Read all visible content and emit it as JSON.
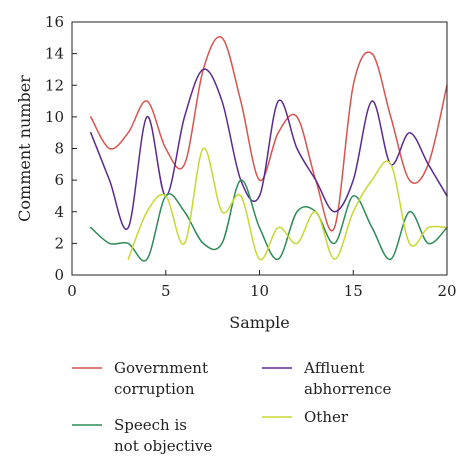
{
  "chart_data": {
    "type": "line",
    "title": "",
    "xlabel": "Sample",
    "ylabel": "Comment number",
    "xlim": [
      0,
      20
    ],
    "ylim": [
      0,
      16
    ],
    "x_ticks": [
      0,
      5,
      10,
      15,
      20
    ],
    "y_ticks": [
      0,
      2,
      4,
      6,
      8,
      10,
      12,
      14,
      16
    ],
    "grid": false,
    "legend_position": "bottom",
    "series": [
      {
        "name": "Government corruption",
        "color": "#d9534f",
        "x": [
          1,
          2,
          3,
          4,
          5,
          6,
          7,
          8,
          9,
          10,
          11,
          12,
          13,
          14,
          15,
          16,
          17,
          18,
          19,
          20
        ],
        "values": [
          10,
          8,
          9,
          11,
          8,
          7,
          13,
          15,
          11,
          6,
          9,
          10,
          6,
          3,
          12,
          14,
          10,
          6,
          7,
          12
        ]
      },
      {
        "name": "Affluent abhorrence",
        "color": "#5b2a8e",
        "x": [
          1,
          2,
          3,
          4,
          5,
          6,
          7,
          8,
          9,
          10,
          11,
          12,
          13,
          14,
          15,
          16,
          17,
          18,
          19,
          20
        ],
        "values": [
          9,
          6,
          3,
          10,
          5,
          10,
          13,
          11,
          6,
          5,
          11,
          8,
          6,
          4,
          6,
          11,
          7,
          9,
          7,
          5
        ]
      },
      {
        "name": "Speech is not objective",
        "color": "#2e8b57",
        "x": [
          1,
          2,
          3,
          4,
          5,
          6,
          7,
          8,
          9,
          10,
          11,
          12,
          13,
          14,
          15,
          16,
          17,
          18,
          19,
          20
        ],
        "values": [
          3,
          2,
          2,
          1,
          5,
          4,
          2,
          2,
          6,
          3,
          1,
          4,
          4,
          2,
          5,
          3,
          1,
          4,
          2,
          3
        ]
      },
      {
        "name": "Other",
        "color": "#c8d832",
        "x": [
          3,
          4,
          5,
          6,
          7,
          8,
          9,
          10,
          11,
          12,
          13,
          14,
          15,
          16,
          17,
          18,
          19,
          20
        ],
        "values": [
          1,
          4,
          5,
          2,
          8,
          4,
          5,
          1,
          3,
          2,
          4,
          1,
          4,
          6,
          7,
          2,
          3,
          3
        ]
      }
    ],
    "legend": [
      {
        "line1": "Government",
        "line2": "corruption",
        "series_index": 0
      },
      {
        "line1": "Affluent",
        "line2": "abhorrence",
        "series_index": 1
      },
      {
        "line1": "Speech is",
        "line2": "not objective",
        "series_index": 2
      },
      {
        "line1": "Other",
        "line2": "",
        "series_index": 3
      }
    ]
  }
}
